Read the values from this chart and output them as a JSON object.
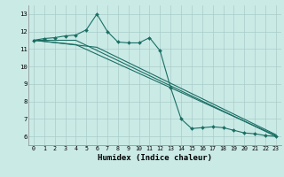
{
  "bg_color": "#caeae6",
  "grid_color": "#aaccc8",
  "line_color": "#1a6e64",
  "marker_color": "#1a6e64",
  "xlabel": "Humidex (Indice chaleur)",
  "xlabel_fontsize": 6.5,
  "xlim": [
    -0.5,
    23.5
  ],
  "ylim": [
    5.5,
    13.5
  ],
  "yticks": [
    6,
    7,
    8,
    9,
    10,
    11,
    12,
    13
  ],
  "xticks": [
    0,
    1,
    2,
    3,
    4,
    5,
    6,
    7,
    8,
    9,
    10,
    11,
    12,
    13,
    14,
    15,
    16,
    17,
    18,
    19,
    20,
    21,
    22,
    23
  ],
  "line1_x": [
    0,
    1,
    2,
    3,
    4,
    5,
    6,
    7,
    8,
    9,
    10,
    11,
    12,
    13,
    14,
    15,
    16,
    17,
    18,
    19,
    20,
    21,
    22,
    23
  ],
  "line1_y": [
    11.5,
    11.6,
    11.65,
    11.75,
    11.8,
    12.1,
    13.0,
    12.0,
    11.4,
    11.35,
    11.35,
    11.65,
    10.9,
    8.8,
    7.0,
    6.45,
    6.5,
    6.55,
    6.5,
    6.35,
    6.2,
    6.15,
    6.05,
    6.0
  ],
  "line2_x": [
    0,
    4,
    23
  ],
  "line2_y": [
    11.5,
    11.5,
    6.0
  ],
  "line3_x": [
    0,
    4,
    23
  ],
  "line3_y": [
    11.5,
    11.25,
    6.05
  ],
  "line4_x": [
    0,
    6,
    23
  ],
  "line4_y": [
    11.5,
    11.1,
    6.1
  ]
}
